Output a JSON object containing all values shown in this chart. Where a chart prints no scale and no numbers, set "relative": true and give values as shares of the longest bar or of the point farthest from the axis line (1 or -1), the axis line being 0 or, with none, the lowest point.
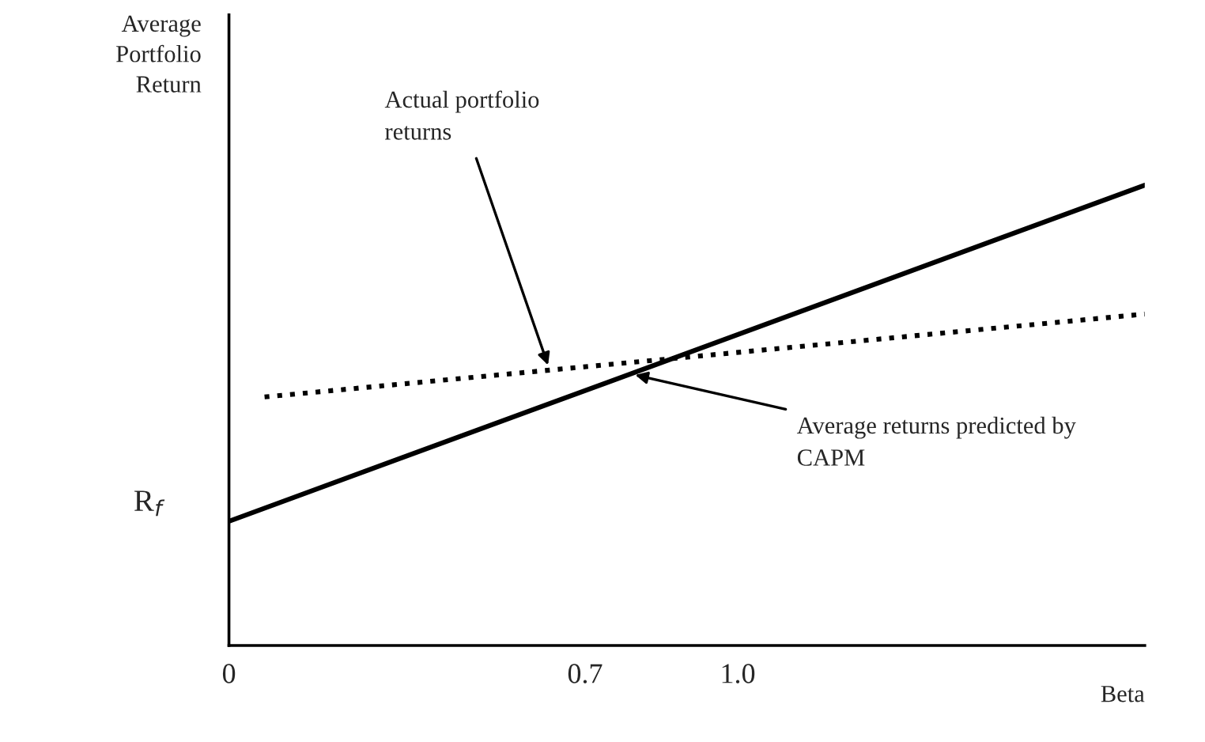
{
  "chart_data": {
    "type": "line",
    "relative": true,
    "ylabel": "Average\nPortfolio\nReturn",
    "xlabel": "Beta",
    "xlim": [
      0,
      1.8
    ],
    "xticks": [
      0,
      0.7,
      {
        "value": 1.0,
        "label": "1.0"
      }
    ],
    "series": [
      {
        "color": "#000000",
        "line_style": "solid",
        "x": [
          0,
          1.8
        ],
        "values": [
          0.27,
          1
        ]
      },
      {
        "color": "#000000",
        "line_style": "dotted",
        "x": [
          0.07,
          1.8
        ],
        "values": [
          0.54,
          0.72
        ]
      }
    ],
    "annotations": [
      {
        "text": "Actual portfolio\nreturns",
        "x": 0.63,
        "y": 0.6
      },
      {
        "text": "Average returns predicted by\nCAPM",
        "x": 0.79,
        "y": 0.59
      },
      {
        "text": "R$_{f}$",
        "x": 0,
        "y": 0.27
      }
    ]
  }
}
